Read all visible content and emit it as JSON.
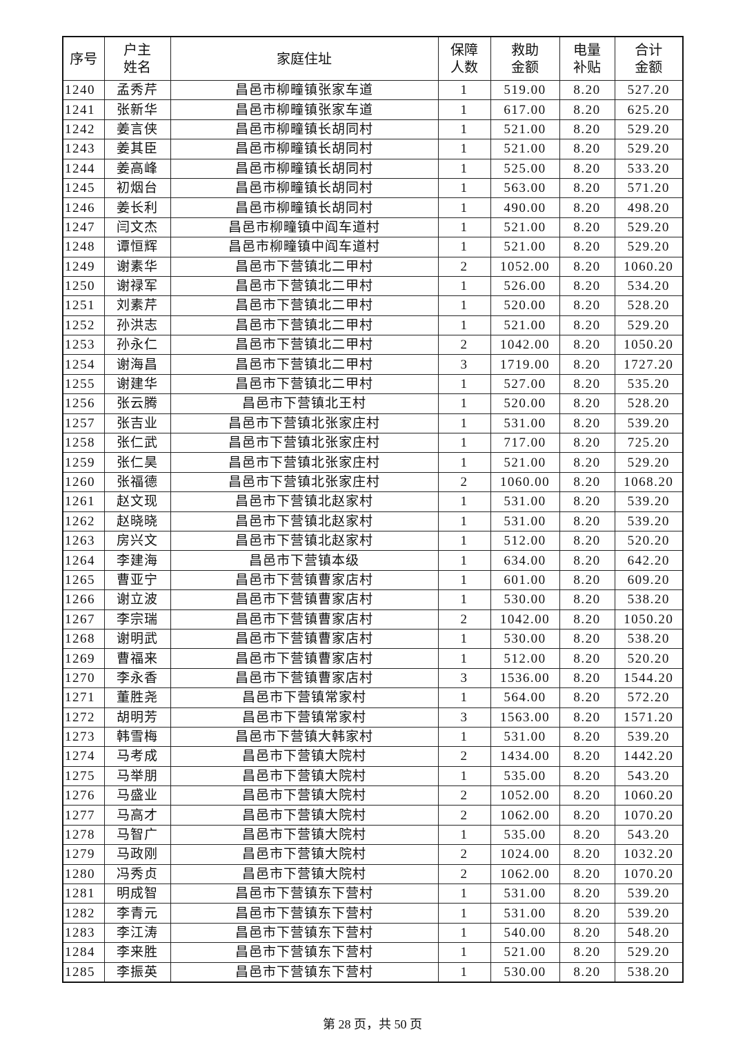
{
  "headers": [
    "序号",
    "户主\n姓名",
    "家庭住址",
    "保障\n人数",
    "救助\n金额",
    "电量\n补贴",
    "合计\n金额"
  ],
  "rows": [
    [
      "1240",
      "孟秀芹",
      "昌邑市柳疃镇张家车道",
      "1",
      "519.00",
      "8.20",
      "527.20"
    ],
    [
      "1241",
      "张新华",
      "昌邑市柳疃镇张家车道",
      "1",
      "617.00",
      "8.20",
      "625.20"
    ],
    [
      "1242",
      "姜言侠",
      "昌邑市柳疃镇长胡同村",
      "1",
      "521.00",
      "8.20",
      "529.20"
    ],
    [
      "1243",
      "姜其臣",
      "昌邑市柳疃镇长胡同村",
      "1",
      "521.00",
      "8.20",
      "529.20"
    ],
    [
      "1244",
      "姜高峰",
      "昌邑市柳疃镇长胡同村",
      "1",
      "525.00",
      "8.20",
      "533.20"
    ],
    [
      "1245",
      "初烟台",
      "昌邑市柳疃镇长胡同村",
      "1",
      "563.00",
      "8.20",
      "571.20"
    ],
    [
      "1246",
      "姜长利",
      "昌邑市柳疃镇长胡同村",
      "1",
      "490.00",
      "8.20",
      "498.20"
    ],
    [
      "1247",
      "闫文杰",
      "昌邑市柳疃镇中阎车道村",
      "1",
      "521.00",
      "8.20",
      "529.20"
    ],
    [
      "1248",
      "谭恒辉",
      "昌邑市柳疃镇中阎车道村",
      "1",
      "521.00",
      "8.20",
      "529.20"
    ],
    [
      "1249",
      "谢素华",
      "昌邑市下营镇北二甲村",
      "2",
      "1052.00",
      "8.20",
      "1060.20"
    ],
    [
      "1250",
      "谢禄军",
      "昌邑市下营镇北二甲村",
      "1",
      "526.00",
      "8.20",
      "534.20"
    ],
    [
      "1251",
      "刘素芹",
      "昌邑市下营镇北二甲村",
      "1",
      "520.00",
      "8.20",
      "528.20"
    ],
    [
      "1252",
      "孙洪志",
      "昌邑市下营镇北二甲村",
      "1",
      "521.00",
      "8.20",
      "529.20"
    ],
    [
      "1253",
      "孙永仁",
      "昌邑市下营镇北二甲村",
      "2",
      "1042.00",
      "8.20",
      "1050.20"
    ],
    [
      "1254",
      "谢海昌",
      "昌邑市下营镇北二甲村",
      "3",
      "1719.00",
      "8.20",
      "1727.20"
    ],
    [
      "1255",
      "谢建华",
      "昌邑市下营镇北二甲村",
      "1",
      "527.00",
      "8.20",
      "535.20"
    ],
    [
      "1256",
      "张云腾",
      "昌邑市下营镇北王村",
      "1",
      "520.00",
      "8.20",
      "528.20"
    ],
    [
      "1257",
      "张吉业",
      "昌邑市下营镇北张家庄村",
      "1",
      "531.00",
      "8.20",
      "539.20"
    ],
    [
      "1258",
      "张仁武",
      "昌邑市下营镇北张家庄村",
      "1",
      "717.00",
      "8.20",
      "725.20"
    ],
    [
      "1259",
      "张仁昊",
      "昌邑市下营镇北张家庄村",
      "1",
      "521.00",
      "8.20",
      "529.20"
    ],
    [
      "1260",
      "张福德",
      "昌邑市下营镇北张家庄村",
      "2",
      "1060.00",
      "8.20",
      "1068.20"
    ],
    [
      "1261",
      "赵文现",
      "昌邑市下营镇北赵家村",
      "1",
      "531.00",
      "8.20",
      "539.20"
    ],
    [
      "1262",
      "赵晓晓",
      "昌邑市下营镇北赵家村",
      "1",
      "531.00",
      "8.20",
      "539.20"
    ],
    [
      "1263",
      "房兴文",
      "昌邑市下营镇北赵家村",
      "1",
      "512.00",
      "8.20",
      "520.20"
    ],
    [
      "1264",
      "李建海",
      "昌邑市下营镇本级",
      "1",
      "634.00",
      "8.20",
      "642.20"
    ],
    [
      "1265",
      "曹亚宁",
      "昌邑市下营镇曹家店村",
      "1",
      "601.00",
      "8.20",
      "609.20"
    ],
    [
      "1266",
      "谢立波",
      "昌邑市下营镇曹家店村",
      "1",
      "530.00",
      "8.20",
      "538.20"
    ],
    [
      "1267",
      "李宗瑞",
      "昌邑市下营镇曹家店村",
      "2",
      "1042.00",
      "8.20",
      "1050.20"
    ],
    [
      "1268",
      "谢明武",
      "昌邑市下营镇曹家店村",
      "1",
      "530.00",
      "8.20",
      "538.20"
    ],
    [
      "1269",
      "曹福来",
      "昌邑市下营镇曹家店村",
      "1",
      "512.00",
      "8.20",
      "520.20"
    ],
    [
      "1270",
      "李永香",
      "昌邑市下营镇曹家店村",
      "3",
      "1536.00",
      "8.20",
      "1544.20"
    ],
    [
      "1271",
      "董胜尧",
      "昌邑市下营镇常家村",
      "1",
      "564.00",
      "8.20",
      "572.20"
    ],
    [
      "1272",
      "胡明芳",
      "昌邑市下营镇常家村",
      "3",
      "1563.00",
      "8.20",
      "1571.20"
    ],
    [
      "1273",
      "韩雪梅",
      "昌邑市下营镇大韩家村",
      "1",
      "531.00",
      "8.20",
      "539.20"
    ],
    [
      "1274",
      "马考成",
      "昌邑市下营镇大院村",
      "2",
      "1434.00",
      "8.20",
      "1442.20"
    ],
    [
      "1275",
      "马举朋",
      "昌邑市下营镇大院村",
      "1",
      "535.00",
      "8.20",
      "543.20"
    ],
    [
      "1276",
      "马盛业",
      "昌邑市下营镇大院村",
      "2",
      "1052.00",
      "8.20",
      "1060.20"
    ],
    [
      "1277",
      "马高才",
      "昌邑市下营镇大院村",
      "2",
      "1062.00",
      "8.20",
      "1070.20"
    ],
    [
      "1278",
      "马智广",
      "昌邑市下营镇大院村",
      "1",
      "535.00",
      "8.20",
      "543.20"
    ],
    [
      "1279",
      "马政刚",
      "昌邑市下营镇大院村",
      "2",
      "1024.00",
      "8.20",
      "1032.20"
    ],
    [
      "1280",
      "冯秀贞",
      "昌邑市下营镇大院村",
      "2",
      "1062.00",
      "8.20",
      "1070.20"
    ],
    [
      "1281",
      "明成智",
      "昌邑市下营镇东下营村",
      "1",
      "531.00",
      "8.20",
      "539.20"
    ],
    [
      "1282",
      "李青元",
      "昌邑市下营镇东下营村",
      "1",
      "531.00",
      "8.20",
      "539.20"
    ],
    [
      "1283",
      "李江涛",
      "昌邑市下营镇东下营村",
      "1",
      "540.00",
      "8.20",
      "548.20"
    ],
    [
      "1284",
      "李来胜",
      "昌邑市下营镇东下营村",
      "1",
      "521.00",
      "8.20",
      "529.20"
    ],
    [
      "1285",
      "李振英",
      "昌邑市下营镇东下营村",
      "1",
      "530.00",
      "8.20",
      "538.20"
    ]
  ],
  "footer": "第 28 页，共 50 页"
}
